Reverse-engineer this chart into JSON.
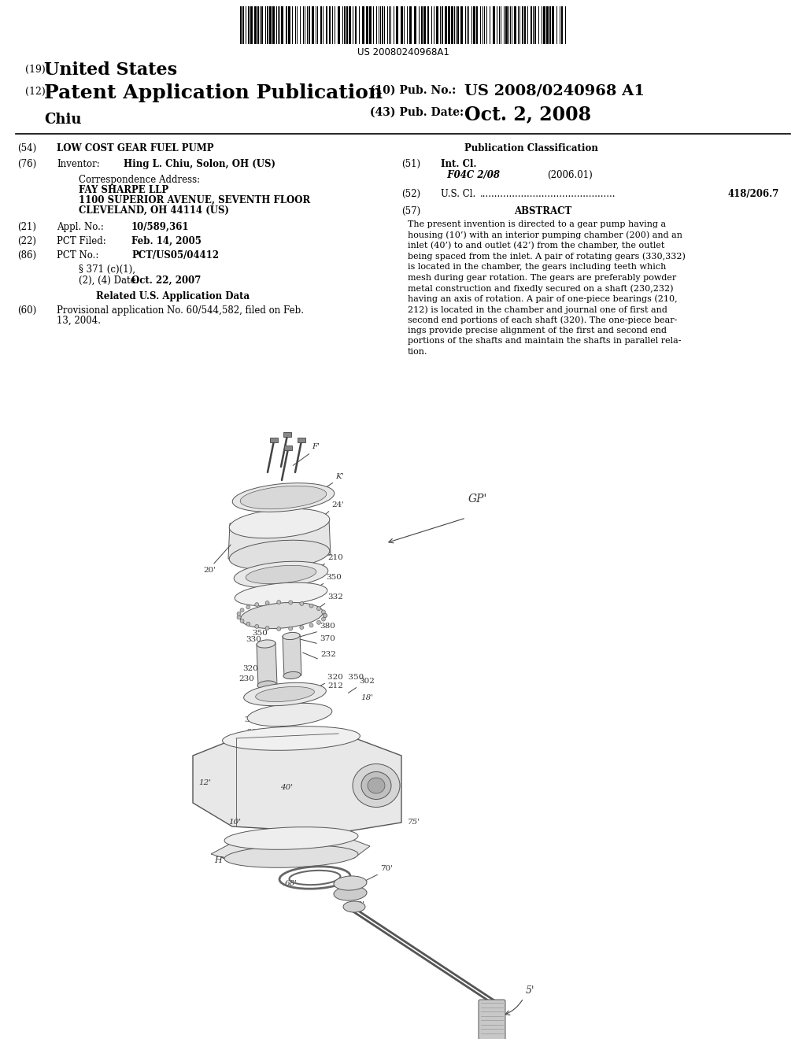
{
  "background_color": "#ffffff",
  "barcode_text": "US 20080240968A1",
  "title_19": "(19)",
  "title_19_bold": "United States",
  "title_12": "(12)",
  "title_12_bold": "Patent Application Publication",
  "pub_no_label": "(10) Pub. No.:",
  "pub_no_value": "US 2008/0240968 A1",
  "pub_date_label": "(43) Pub. Date:",
  "pub_date_value": "Oct. 2, 2008",
  "inventor_name": "    Chiu",
  "section_54_label": "(54)  ",
  "section_54_text": "LOW COST GEAR FUEL PUMP",
  "section_76_label": "(76)  ",
  "section_76_key": "Inventor:  ",
  "section_76_value": "Hing L. Chiu, Solon, OH (US)",
  "correspondence_label": "Correspondence Address:",
  "correspondence_lines": [
    "FAY SHARPE LLP",
    "1100 SUPERIOR AVENUE, SEVENTH FLOOR",
    "CLEVELAND, OH 44114 (US)"
  ],
  "section_21_label": "(21)  ",
  "section_21_key": "Appl. No.:  ",
  "section_21_value": "10/589,361",
  "section_22_label": "(22)  ",
  "section_22_key": "PCT Filed:  ",
  "section_22_value": "Feb. 14, 2005",
  "section_86_label": "(86)  ",
  "section_86_key": "PCT No.:  ",
  "section_86_value": "PCT/US05/04412",
  "section_371_line1": "§ 371 (c)(1),",
  "section_371_line2": "(2), (4) Date:",
  "section_371_value": "Oct. 22, 2007",
  "related_header": "Related U.S. Application Data",
  "section_60_label": "(60)  ",
  "section_60_text_line1": "Provisional application No. 60/544,582, filed on Feb.",
  "section_60_text_line2": "13, 2004.",
  "pub_class_header": "Publication Classification",
  "section_51_label": "(51)  ",
  "section_51_key": "Int. Cl.",
  "section_51_class": "F04C 2/08",
  "section_51_year": "(2006.01)",
  "section_52_label": "(52)  ",
  "section_52_key": "U.S. Cl.",
  "section_52_value": "418/206.7",
  "section_57_label": "(57)",
  "section_57_header": "ABSTRACT",
  "abstract_lines": [
    "The present invention is directed to a gear pump having a",
    "housing (10’) with an interior pumping chamber (200) and an",
    "inlet (40’) to and outlet (42’) from the chamber, the outlet",
    "being spaced from the inlet. A pair of rotating gears (330,332)",
    "is located in the chamber, the gears including teeth which",
    "mesh during gear rotation. The gears are preferably powder",
    "metal construction and fixedly secured on a shaft (230,232)",
    "having an axis of rotation. A pair of one-piece bearings (210,",
    "212) is located in the chamber and journal one of first and",
    "second end portions of each shaft (320). The one-piece bear-",
    "ings provide precise alignment of the first and second end",
    "portions of the shafts and maintain the shafts in parallel rela-",
    "tion."
  ]
}
